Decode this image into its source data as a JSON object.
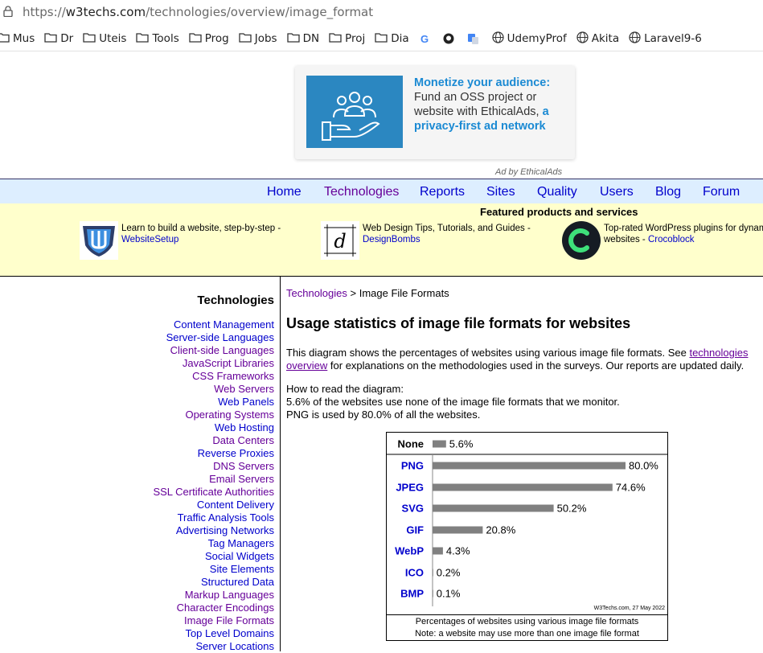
{
  "browser": {
    "url_prefix": "https://",
    "url_host": "w3techs.com",
    "url_path": "/technologies/overview/image_format",
    "bookmarks": [
      "Mus",
      "Dr",
      "Uteis",
      "Tools",
      "Prog",
      "Jobs",
      "DN",
      "Proj",
      "Dia",
      "UdemyProf",
      "Akita",
      "Laravel9-6"
    ]
  },
  "ad": {
    "headline": "Monetize your audience:",
    "body": "Fund an OSS project or website with EthicalAds,",
    "link": "a privacy-first ad network",
    "by": "Ad by EthicalAds"
  },
  "nav": [
    "Home",
    "Technologies",
    "Reports",
    "Sites",
    "Quality",
    "Users",
    "Blog",
    "Forum"
  ],
  "featured": {
    "title": "Featured products and services",
    "items": [
      {
        "text": "Learn to build a website, step-by-step -",
        "link": "WebsiteSetup"
      },
      {
        "text": "Web Design Tips, Tutorials, and Guides -",
        "link": "DesignBombs"
      },
      {
        "text": "Top-rated WordPress plugins for dynamic",
        "text2": "websites -",
        "link": "Crocoblock"
      }
    ]
  },
  "sidebar": {
    "title": "Technologies",
    "items": [
      "Content Management",
      "Server-side Languages",
      "Client-side Languages",
      "JavaScript Libraries",
      "CSS Frameworks",
      "Web Servers",
      "Web Panels",
      "Operating Systems",
      "Web Hosting",
      "Data Centers",
      "Reverse Proxies",
      "DNS Servers",
      "Email Servers",
      "SSL Certificate Authorities",
      "Content Delivery",
      "Traffic Analysis Tools",
      "Advertising Networks",
      "Tag Managers",
      "Social Widgets",
      "Site Elements",
      "Structured Data",
      "Markup Languages",
      "Character Encodings",
      "Image File Formats",
      "Top Level Domains",
      "Server Locations"
    ]
  },
  "main": {
    "crumb_link": "Technologies",
    "crumb_rest": " > Image File Formats",
    "heading": "Usage statistics of image file formats for websites",
    "desc_1": "This diagram shows the percentages of websites using various image file formats. See ",
    "desc_link": "technologies overview",
    "desc_2": " for explanations on the methodologies used in the surveys. Our reports are updated daily.",
    "howto_title": "How to read the diagram:",
    "howto_1": "5.6% of the websites use none of the image file formats that we monitor.",
    "howto_2": "PNG is used by 80.0% of all the websites."
  },
  "chart_data": {
    "type": "bar",
    "orientation": "horizontal",
    "categories": [
      "None",
      "PNG",
      "JPEG",
      "SVG",
      "GIF",
      "WebP",
      "ICO",
      "BMP"
    ],
    "values": [
      5.6,
      80.0,
      74.6,
      50.2,
      20.8,
      4.3,
      0.2,
      0.1
    ],
    "value_labels": [
      "5.6%",
      "80.0%",
      "74.6%",
      "50.2%",
      "20.8%",
      "4.3%",
      "0.2%",
      "0.1%"
    ],
    "xlim": [
      0,
      100
    ],
    "bar_color": "#808080",
    "source": "W3Techs.com, 27 May 2022",
    "caption_1": "Percentages of websites using various image file formats",
    "caption_2": "Note: a website may use more than one image file format"
  }
}
